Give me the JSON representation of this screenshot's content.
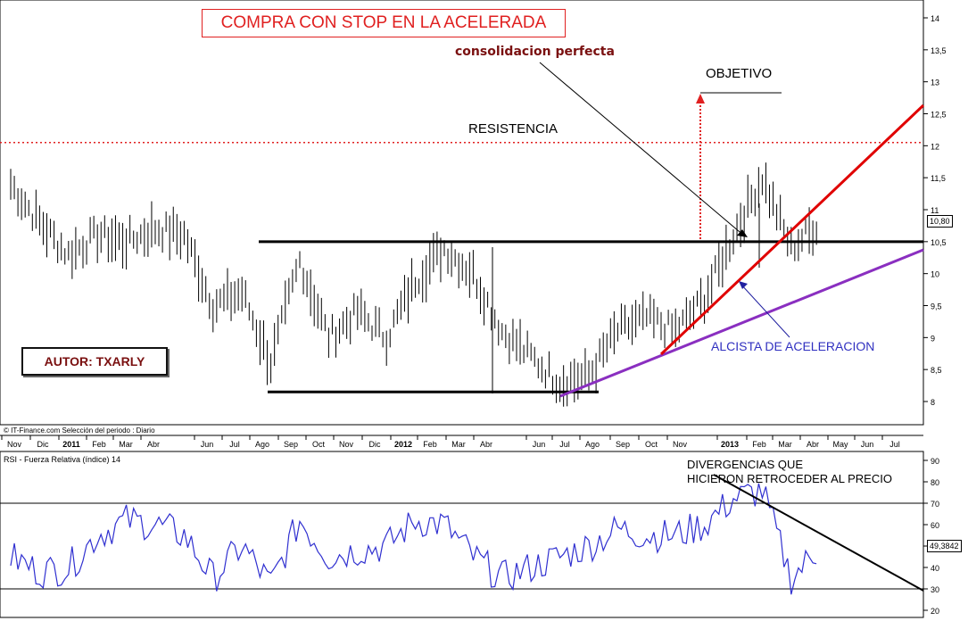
{
  "title_box": "COMPRA  CON STOP  EN LA ACELERADA",
  "annotations": {
    "consolidacion": "consolidacion perfecta",
    "objetivo": "OBJETIVO",
    "resistencia": "RESISTENCIA",
    "alcista": "ALCISTA   DE ACELERACION",
    "divergencias_1": "DIVERGENCIAS QUE",
    "divergencias_2": "HICIERON RETROCEDER AL PRECIO",
    "author": "AUTOR: TXARLY",
    "source": "© IT-Finance.com   Selección del periodo : Diario",
    "rsi_label": "RSI - Fuerza Relativa (índice) 14"
  },
  "colors": {
    "price": "#000000",
    "resistance": "#e02020",
    "red_trend": "#e00000",
    "purple_trend": "#8a2fc0",
    "rsi": "#3030d0",
    "support": "#000000"
  },
  "chart_data": [
    {
      "type": "line",
      "style": "bar-ohlc",
      "x_labels": [
        "Nov",
        "Dic",
        "2011",
        "Feb",
        "Mar",
        "Abr",
        "Jun",
        "Jul",
        "Ago",
        "Sep",
        "Oct",
        "Nov",
        "Dic",
        "2012",
        "Feb",
        "Mar",
        "Abr",
        "Jun",
        "Jul",
        "Ago",
        "Sep",
        "Oct",
        "Nov",
        "2013",
        "Feb",
        "Mar",
        "Abr",
        "May",
        "Jun",
        "Jul"
      ],
      "y_ticks": [
        8,
        8.5,
        9,
        9.5,
        10,
        10.5,
        11,
        11.5,
        12,
        12.5,
        13,
        13.5,
        14
      ],
      "y_tick_labels": [
        "8",
        "8,5",
        "9",
        "9,5",
        "10",
        "10,5",
        "11",
        "11,5",
        "12",
        "12,5",
        "13",
        "13,5",
        "14"
      ],
      "ylim": [
        7.6,
        14.2
      ],
      "last_value": "10,80",
      "series": [
        {
          "values_by_month": {
            "Nov 2010": 11.4,
            "Dic 2010": 10.8,
            "Ene 2011": 10.3,
            "Feb 2011": 10.6,
            "Mar 2011": 10.5,
            "Abr 2011": 10.7,
            "May 2011": 10.6,
            "Jun 2011": 9.5,
            "Jul 2011": 9.7,
            "Ago 2011": 8.6,
            "Sep 2011": 10.2,
            "Oct 2011": 9.0,
            "Nov 2011": 9.4,
            "Dic 2011": 9.0,
            "Ene 2012": 9.9,
            "Feb 2012": 10.4,
            "Mar 2012": 10.0,
            "Abr 2012": 9.1,
            "May 2012": 8.7,
            "Jun 2012": 8.3,
            "Jul 2012": 8.4,
            "Ago 2012": 9.1,
            "Sep 2012": 9.3,
            "Oct 2012": 9.1,
            "Nov 2012": 9.6,
            "Dic 2012": 10.6,
            "Ene 2013": 11.5,
            "Feb 2013": 10.4,
            "Mar 2013": 10.8
          }
        }
      ],
      "lines": {
        "resistance": 12.05,
        "support_high": 10.5,
        "support_low": 8.15,
        "objetivo": 13.0
      }
    },
    {
      "type": "line",
      "title": "RSI - Fuerza Relativa (índice) 14",
      "y_ticks": [
        20,
        30,
        40,
        50,
        60,
        70,
        80,
        90
      ],
      "ylim": [
        18,
        92
      ],
      "overbought": 70,
      "oversold": 30,
      "last_value": "49,3842",
      "series": [
        {
          "values_by_month": {
            "Nov 2010": 45,
            "Dic 2010": 38,
            "Ene 2011": 40,
            "Feb 2011": 55,
            "Mar 2011": 62,
            "Abr 2011": 60,
            "May 2011": 55,
            "Jun 2011": 35,
            "Jul 2011": 50,
            "Ago 2011": 32,
            "Sep 2011": 62,
            "Oct 2011": 45,
            "Nov 2011": 48,
            "Dic 2011": 50,
            "Ene 2012": 62,
            "Feb 2012": 60,
            "Mar 2012": 45,
            "Abr 2012": 35,
            "May 2012": 40,
            "Jun 2012": 45,
            "Jul 2012": 50,
            "Ago 2012": 58,
            "Sep 2012": 55,
            "Oct 2012": 55,
            "Nov 2012": 60,
            "Dic 2012": 72,
            "Ene 2013": 76,
            "Feb 2013": 35,
            "Mar 2013": 49
          }
        }
      ]
    }
  ]
}
